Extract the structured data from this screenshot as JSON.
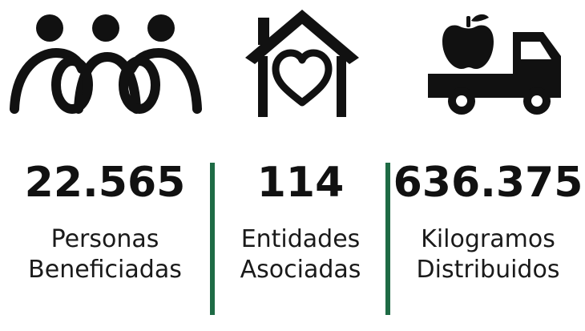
{
  "colors": {
    "divider": "#1e6b45",
    "icon": "#111111"
  },
  "icons": [
    "people-group-icon",
    "house-heart-icon",
    "food-truck-apple-icon"
  ],
  "stats": [
    {
      "value": "22.565",
      "label_line1": "Personas",
      "label_line2": "Beneficiadas"
    },
    {
      "value": "114",
      "label_line1": "Entidades",
      "label_line2": "Asociadas"
    },
    {
      "value": "636.375",
      "label_line1": "Kilogramos",
      "label_line2": "Distribuidos"
    }
  ]
}
